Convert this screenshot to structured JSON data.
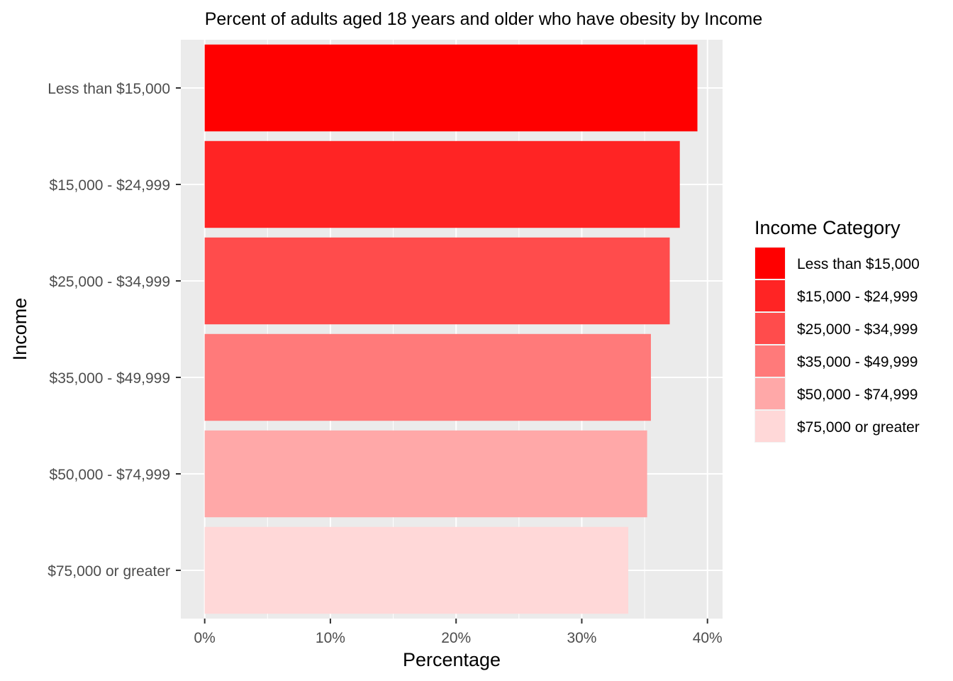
{
  "chart_data": {
    "type": "bar",
    "orientation": "horizontal",
    "title": "Percent of adults aged 18 years and older who have obesity by Income",
    "xlabel": "Percentage",
    "ylabel": "Income",
    "xlim": [
      -1.9,
      41.2
    ],
    "x_ticks": [
      0,
      10,
      20,
      30,
      40
    ],
    "x_tick_labels": [
      "0%",
      "10%",
      "20%",
      "30%",
      "40%"
    ],
    "categories": [
      "Less than $15,000",
      "$15,000 - $24,999",
      "$25,000 - $34,999",
      "$35,000 - $49,999",
      "$50,000 - $74,999",
      "$75,000 or greater"
    ],
    "values": [
      39.2,
      37.8,
      37.0,
      35.5,
      35.2,
      33.7
    ],
    "colors": [
      "#FF0000",
      "#FF2424",
      "#FF4C4C",
      "#FF7A7A",
      "#FFA8A8",
      "#FFD8D8"
    ],
    "grid": true,
    "panel_background": "#EBEBEB",
    "legend": {
      "title": "Income Category",
      "position": "right",
      "entries": [
        "Less than $15,000",
        "$15,000 - $24,999",
        "$25,000 - $34,999",
        "$35,000 - $49,999",
        "$50,000 - $74,999",
        "$75,000 or greater"
      ]
    }
  }
}
